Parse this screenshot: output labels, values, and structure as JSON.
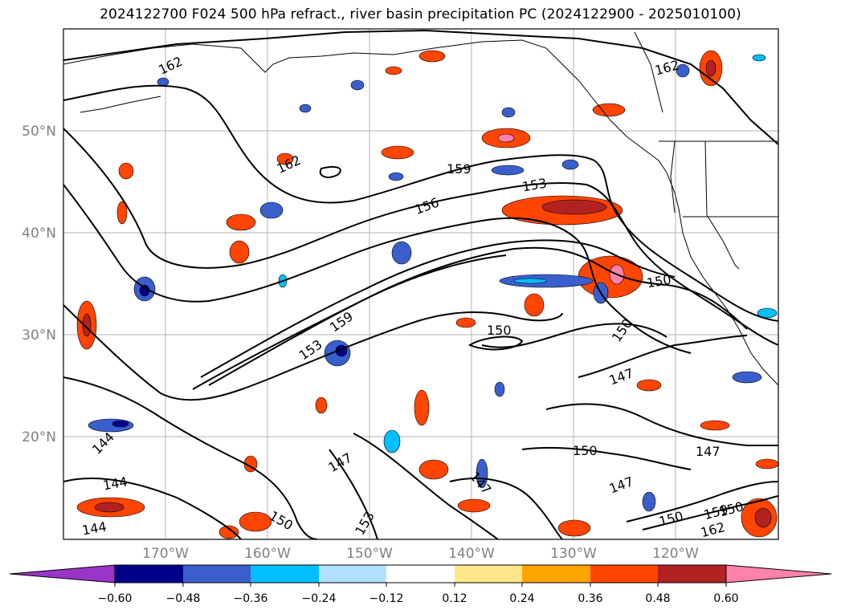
{
  "title": "2024122700 F024 500 hPa refract., river basin precipitation PC (2024122900 - 2025010100)",
  "map": {
    "lat_ticks": [
      "50°N",
      "40°N",
      "30°N",
      "20°N"
    ],
    "lon_ticks": [
      "170°W",
      "160°W",
      "150°W",
      "140°W",
      "130°W",
      "120°W"
    ],
    "contour_labels": [
      "162",
      "162",
      "162",
      "159",
      "156",
      "153",
      "159",
      "153",
      "150",
      "150",
      "150",
      "147",
      "144",
      "144",
      "144",
      "147",
      "147",
      "150",
      "147",
      "150",
      "150",
      "147",
      "159",
      "162",
      "150",
      "153"
    ]
  },
  "colorbar": {
    "ticks": [
      "−0.60",
      "−0.48",
      "−0.36",
      "−0.24",
      "−0.12",
      "0.12",
      "0.24",
      "0.36",
      "0.48",
      "0.60"
    ],
    "colors": [
      "#9a35c8",
      "#00008b",
      "#3a5fcd",
      "#00bfff",
      "#b0e2ff",
      "#ffffff",
      "#ffe68a",
      "#ffa500",
      "#ff4500",
      "#b22222",
      "#ff82ab"
    ]
  }
}
